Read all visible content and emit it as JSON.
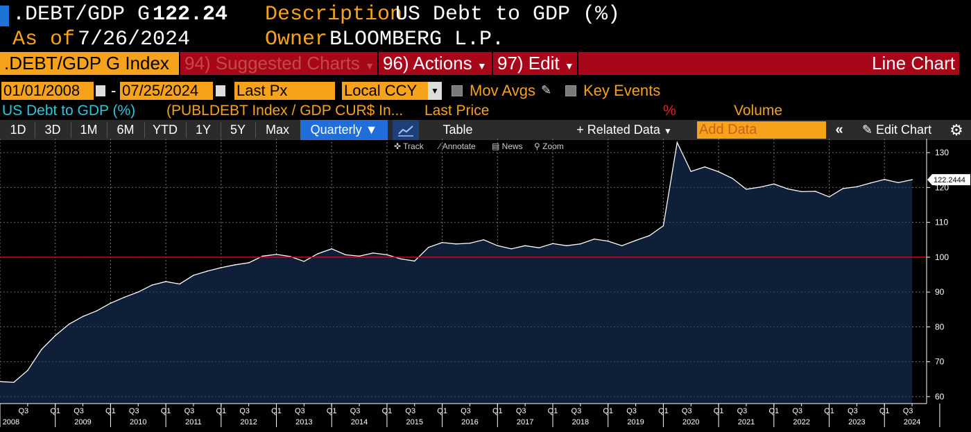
{
  "header": {
    "ticker": ".DEBT/GDP G",
    "last_value": "122.24",
    "description_label": "Description",
    "description_value": "US Debt to GDP (%)",
    "asof_label": "As of",
    "asof_value": "7/26/2024",
    "owner_label": "Owner",
    "owner_value": "BLOOMBERG L.P."
  },
  "menu": {
    "security": ".DEBT/GDP G Index",
    "suggested": "94) Suggested Charts",
    "actions": "96) Actions",
    "edit": "97) Edit",
    "chart_type": "Line Chart"
  },
  "controls": {
    "start_date": "01/01/2008",
    "dash": "-",
    "end_date": "07/25/2024",
    "field": "Last Px",
    "currency": "Local CCY",
    "mov_avgs": "Mov Avgs",
    "key_events": "Key Events"
  },
  "legend": {
    "security": "US Debt to GDP (%)",
    "formula": "(PUBLDEBT Index / GDP CUR$ In...",
    "last_price": "Last Price",
    "pct": "%",
    "volume": "Volume"
  },
  "toolbar": {
    "ranges": [
      "1D",
      "3D",
      "1M",
      "6M",
      "YTD",
      "1Y",
      "5Y",
      "Max"
    ],
    "frequency": "Quarterly",
    "table": "Table",
    "related": "+ Related Data",
    "add_data_placeholder": "Add Data",
    "edit_chart": "Edit Chart"
  },
  "subtools": {
    "track": "Track",
    "annotate": "Annotate",
    "news": "News",
    "zoom": "Zoom"
  },
  "colors": {
    "orange": "#f7a21b",
    "menu_red": "#a8071a",
    "selected_blue": "#1f6ed9",
    "area_fill": "#0f1f38",
    "reference_line": "#d0021b"
  },
  "icons": [
    "calendar-icon",
    "pencil-icon",
    "chevron-double-left-icon",
    "gear-icon",
    "line-chart-icon",
    "caret-down-icon"
  ],
  "chart_data": {
    "type": "area",
    "series": [
      {
        "values": [
          [
            2008.0,
            64.3
          ],
          [
            2008.25,
            64.1
          ],
          [
            2008.5,
            67.5
          ],
          [
            2008.75,
            73.5
          ],
          [
            2009.0,
            77.5
          ],
          [
            2009.25,
            80.8
          ],
          [
            2009.5,
            83.0
          ],
          [
            2009.75,
            84.6
          ],
          [
            2010.0,
            86.8
          ],
          [
            2010.25,
            88.5
          ],
          [
            2010.5,
            90.0
          ],
          [
            2010.75,
            92.0
          ],
          [
            2011.0,
            93.0
          ],
          [
            2011.25,
            92.3
          ],
          [
            2011.5,
            94.8
          ],
          [
            2011.75,
            96.0
          ],
          [
            2012.0,
            97.0
          ],
          [
            2012.25,
            97.8
          ],
          [
            2012.5,
            98.4
          ],
          [
            2012.75,
            100.3
          ],
          [
            2013.0,
            100.8
          ],
          [
            2013.25,
            100.2
          ],
          [
            2013.5,
            98.8
          ],
          [
            2013.75,
            101.0
          ],
          [
            2014.0,
            102.4
          ],
          [
            2014.25,
            100.7
          ],
          [
            2014.5,
            100.3
          ],
          [
            2014.75,
            101.2
          ],
          [
            2015.0,
            100.7
          ],
          [
            2015.25,
            99.5
          ],
          [
            2015.5,
            98.9
          ],
          [
            2015.75,
            102.8
          ],
          [
            2016.0,
            104.2
          ],
          [
            2016.25,
            103.8
          ],
          [
            2016.5,
            104.0
          ],
          [
            2016.75,
            105.0
          ],
          [
            2017.0,
            103.3
          ],
          [
            2017.25,
            102.4
          ],
          [
            2017.5,
            103.3
          ],
          [
            2017.75,
            102.7
          ],
          [
            2018.0,
            103.9
          ],
          [
            2018.25,
            103.3
          ],
          [
            2018.5,
            103.8
          ],
          [
            2018.75,
            105.2
          ],
          [
            2019.0,
            104.6
          ],
          [
            2019.25,
            103.3
          ],
          [
            2019.5,
            104.8
          ],
          [
            2019.75,
            106.2
          ],
          [
            2020.0,
            109.0
          ],
          [
            2020.25,
            132.9
          ],
          [
            2020.5,
            124.6
          ],
          [
            2020.75,
            125.9
          ],
          [
            2021.0,
            124.5
          ],
          [
            2021.25,
            122.6
          ],
          [
            2021.5,
            119.5
          ],
          [
            2021.75,
            120.1
          ],
          [
            2022.0,
            121.0
          ],
          [
            2022.25,
            119.6
          ],
          [
            2022.5,
            118.8
          ],
          [
            2022.75,
            118.9
          ],
          [
            2023.0,
            117.3
          ],
          [
            2023.25,
            119.7
          ],
          [
            2023.5,
            120.2
          ],
          [
            2023.75,
            121.3
          ],
          [
            2024.0,
            122.3
          ],
          [
            2024.25,
            121.4
          ],
          [
            2024.5,
            122.2444
          ]
        ]
      }
    ],
    "last_label": "122.2444",
    "reference_line": 100,
    "x_range": [
      2008,
      2024.75
    ],
    "ylim": [
      58,
      134
    ],
    "y_ticks": [
      60,
      70,
      80,
      90,
      100,
      110,
      120,
      130
    ],
    "quarter_ticks": [
      {
        "q": "Q3",
        "x": 2008.5
      },
      {
        "q": "Q1",
        "x": 2009.0
      },
      {
        "q": "Q3",
        "x": 2009.5
      },
      {
        "q": "Q1",
        "x": 2010.0
      },
      {
        "q": "Q3",
        "x": 2010.5
      },
      {
        "q": "Q1",
        "x": 2011.0
      },
      {
        "q": "Q3",
        "x": 2011.5
      },
      {
        "q": "Q1",
        "x": 2012.0
      },
      {
        "q": "Q3",
        "x": 2012.5
      },
      {
        "q": "Q1",
        "x": 2013.0
      },
      {
        "q": "Q3",
        "x": 2013.5
      },
      {
        "q": "Q1",
        "x": 2014.0
      },
      {
        "q": "Q3",
        "x": 2014.5
      },
      {
        "q": "Q1",
        "x": 2015.0
      },
      {
        "q": "Q3",
        "x": 2015.5
      },
      {
        "q": "Q1",
        "x": 2016.0
      },
      {
        "q": "Q3",
        "x": 2016.5
      },
      {
        "q": "Q1",
        "x": 2017.0
      },
      {
        "q": "Q3",
        "x": 2017.5
      },
      {
        "q": "Q1",
        "x": 2018.0
      },
      {
        "q": "Q3",
        "x": 2018.5
      },
      {
        "q": "Q1",
        "x": 2019.0
      },
      {
        "q": "Q3",
        "x": 2019.5
      },
      {
        "q": "Q1",
        "x": 2020.0
      },
      {
        "q": "Q3",
        "x": 2020.5
      },
      {
        "q": "Q1",
        "x": 2021.0
      },
      {
        "q": "Q3",
        "x": 2021.5
      },
      {
        "q": "Q1",
        "x": 2022.0
      },
      {
        "q": "Q3",
        "x": 2022.5
      },
      {
        "q": "Q1",
        "x": 2023.0
      },
      {
        "q": "Q3",
        "x": 2023.5
      },
      {
        "q": "Q1",
        "x": 2024.0
      },
      {
        "q": "Q3",
        "x": 2024.5
      }
    ],
    "year_labels": [
      "2008",
      "2009",
      "2010",
      "2011",
      "2012",
      "2013",
      "2014",
      "2015",
      "2016",
      "2017",
      "2018",
      "2019",
      "2020",
      "2021",
      "2022",
      "2023",
      "2024"
    ],
    "grid": true
  }
}
